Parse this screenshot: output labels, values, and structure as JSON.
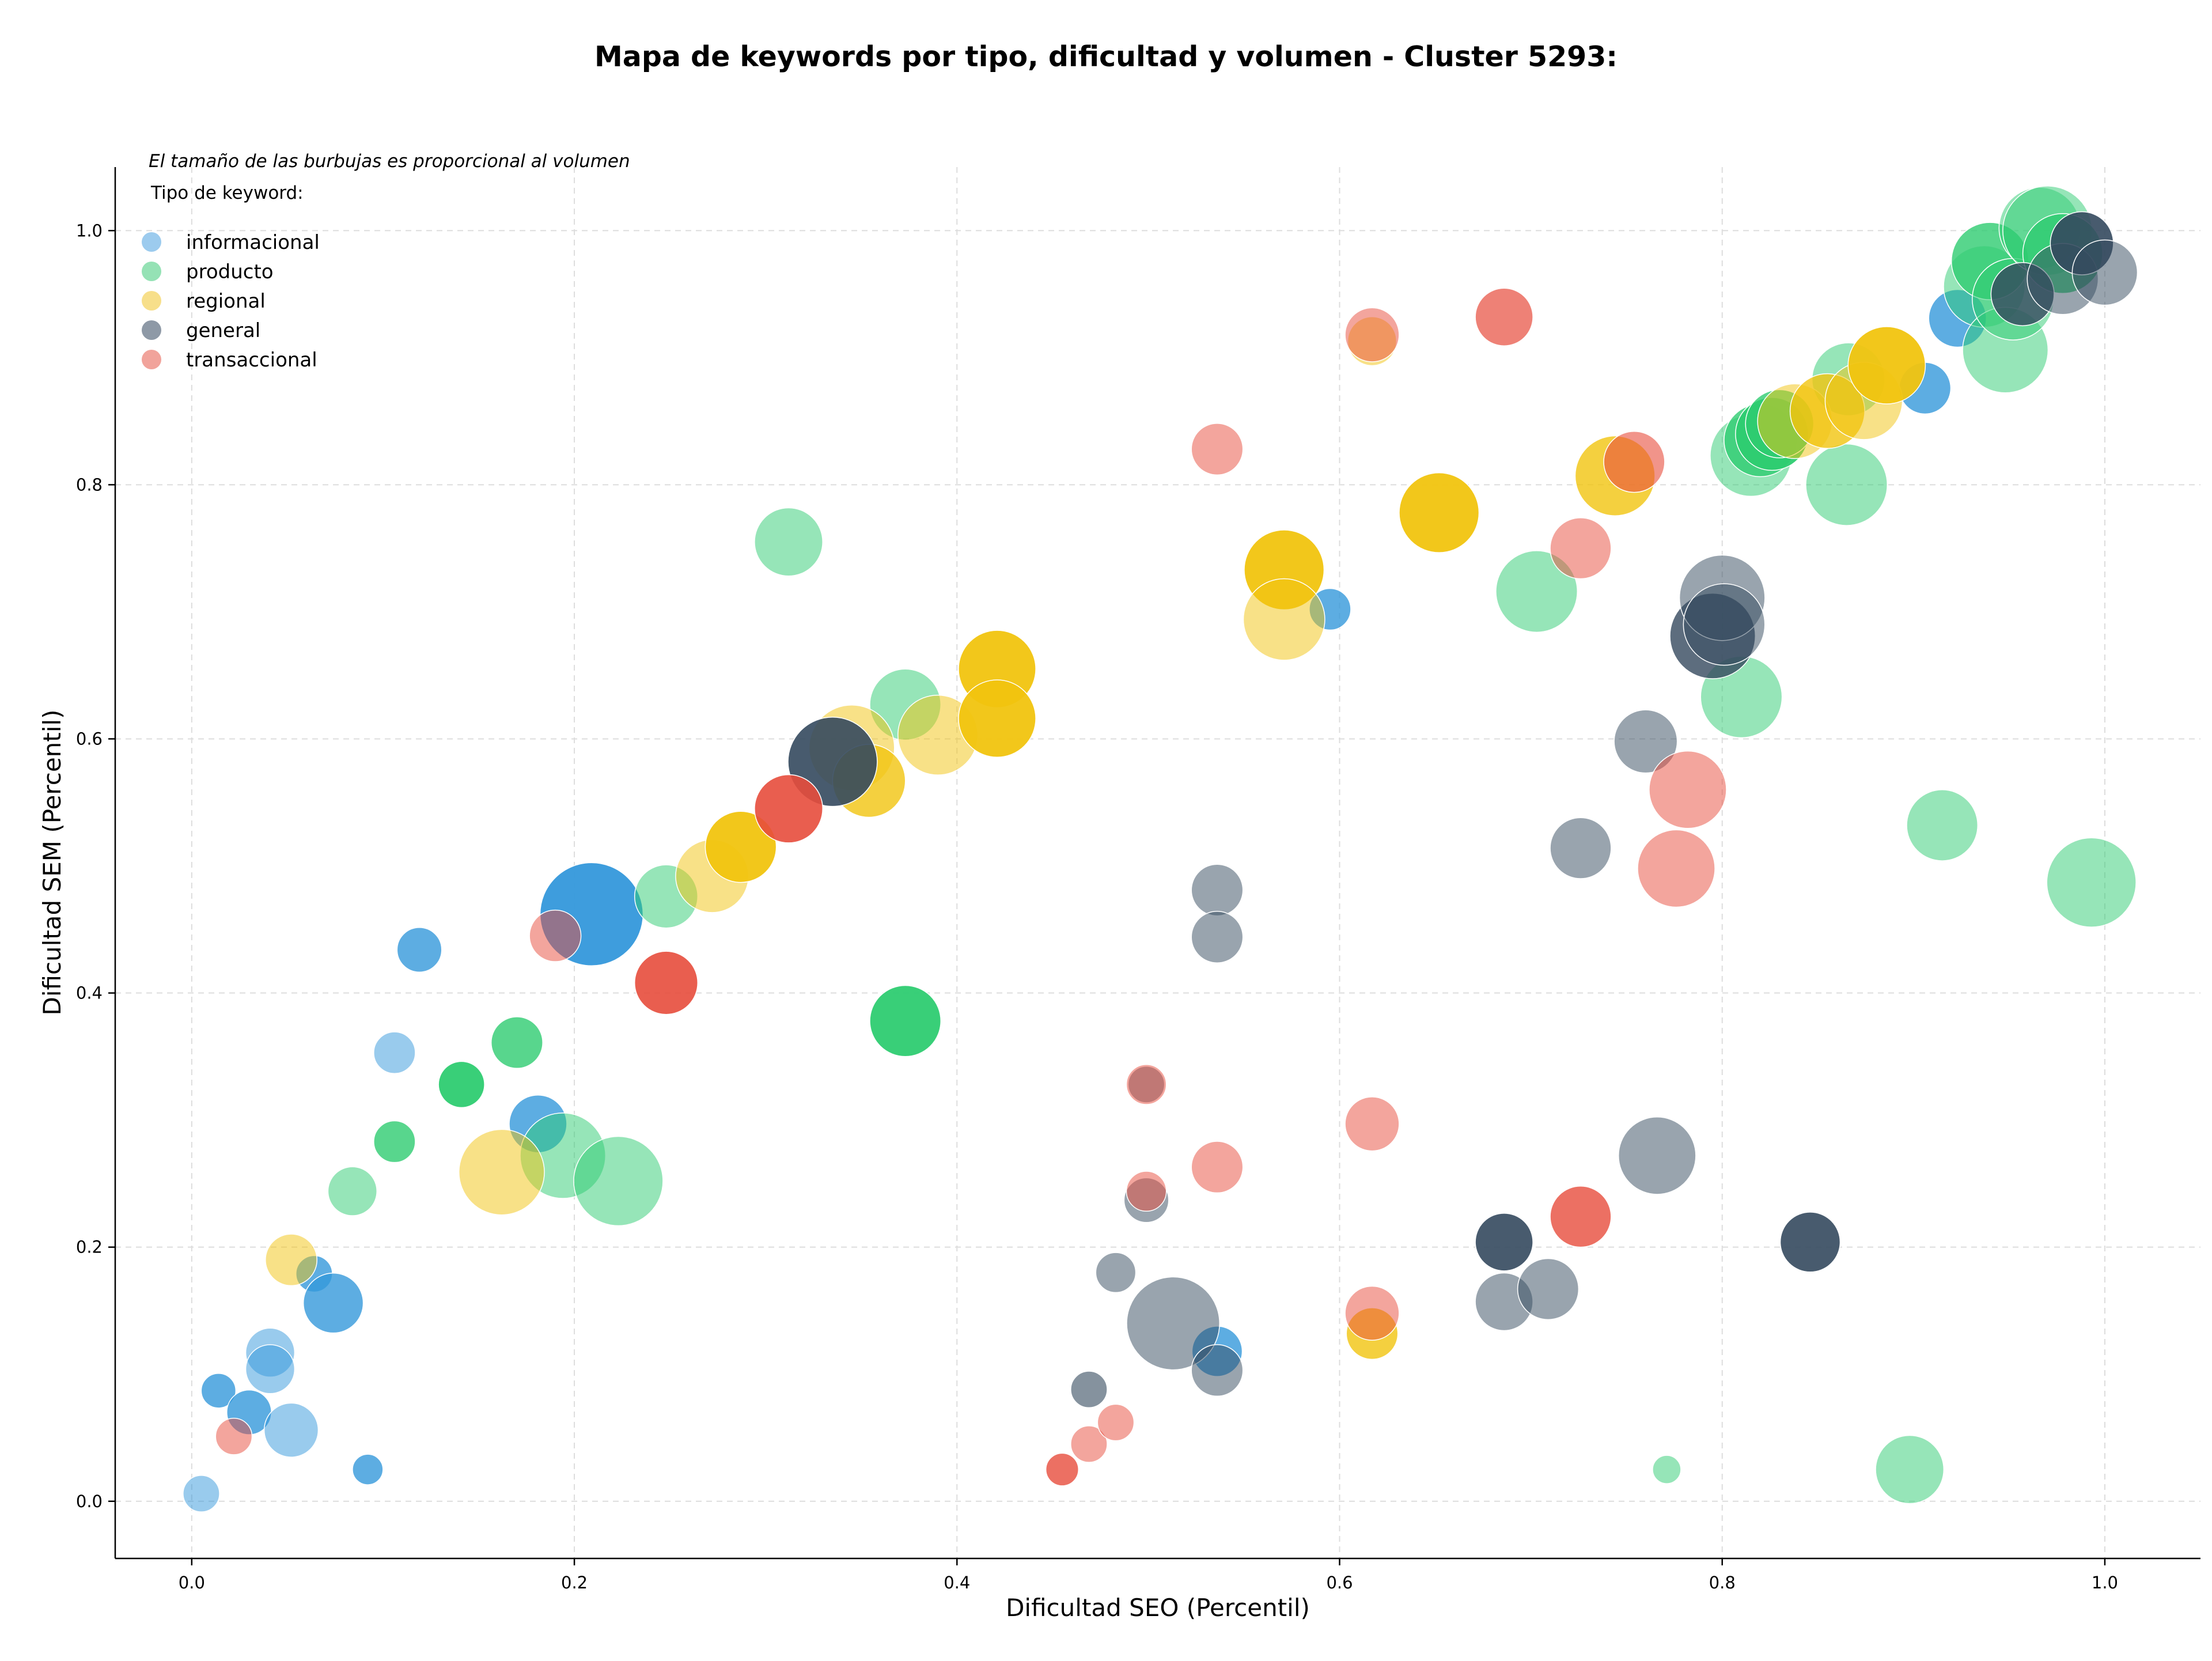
{
  "chart_data": {
    "type": "scatter",
    "title": "Mapa de keywords por tipo, dificultad y volumen - Cluster 5293:",
    "xlabel": "Dificultad SEO (Percentil)",
    "ylabel": "Dificultad SEM (Percentil)",
    "note": "El tamaño de las burbujas es proporcional al volumen",
    "legend_title": "Tipo de keyword:",
    "legend_position": "top-left",
    "grid": true,
    "xlim": [
      -0.04,
      1.05
    ],
    "ylim": [
      -0.045,
      1.05
    ],
    "xticks": [
      0.0,
      0.2,
      0.4,
      0.6,
      0.8,
      1.0
    ],
    "yticks": [
      0.0,
      0.2,
      0.4,
      0.6,
      0.8,
      1.0
    ],
    "xtick_labels": [
      "0.0",
      "0.2",
      "0.4",
      "0.6",
      "0.8",
      "1.0"
    ],
    "ytick_labels": [
      "0.0",
      "0.2",
      "0.4",
      "0.6",
      "0.8",
      "1.0"
    ],
    "series": [
      {
        "name": "informacional",
        "color": "#3498db",
        "legend_color": "#9ccbee",
        "points": [
          [
            0.005,
            0.006,
            10
          ],
          [
            0.014,
            0.087,
            9
          ],
          [
            0.03,
            0.07,
            15
          ],
          [
            0.041,
            0.117,
            18
          ],
          [
            0.041,
            0.104,
            18
          ],
          [
            0.052,
            0.056,
            22
          ],
          [
            0.064,
            0.179,
            10
          ],
          [
            0.074,
            0.156,
            27
          ],
          [
            0.092,
            0.025,
            7
          ],
          [
            0.106,
            0.353,
            13
          ],
          [
            0.119,
            0.434,
            15
          ],
          [
            0.181,
            0.297,
            25
          ],
          [
            0.209,
            0.462,
            80
          ],
          [
            0.595,
            0.702,
            13
          ],
          [
            0.536,
            0.118,
            19
          ],
          [
            0.906,
            0.876,
            20
          ],
          [
            0.923,
            0.931,
            25
          ]
        ],
        "alphas": [
          0.5,
          0.8,
          0.8,
          0.5,
          0.5,
          0.5,
          0.8,
          0.8,
          0.8,
          0.5,
          0.8,
          0.8,
          0.95,
          0.8,
          0.8,
          0.8,
          0.8
        ]
      },
      {
        "name": "producto",
        "color": "#2ecc71",
        "legend_color": "#95e2b5",
        "points": [
          [
            0.084,
            0.244,
            18
          ],
          [
            0.106,
            0.283,
            13
          ],
          [
            0.141,
            0.328,
            16
          ],
          [
            0.17,
            0.361,
            20
          ],
          [
            0.194,
            0.272,
            55
          ],
          [
            0.223,
            0.252,
            60
          ],
          [
            0.248,
            0.476,
            30
          ],
          [
            0.312,
            0.755,
            35
          ],
          [
            0.373,
            0.627,
            38
          ],
          [
            0.373,
            0.378,
            38
          ],
          [
            0.703,
            0.716,
            50
          ],
          [
            0.771,
            0.025,
            6
          ],
          [
            0.81,
            0.633,
            50
          ],
          [
            0.815,
            0.823,
            50
          ],
          [
            0.82,
            0.835,
            40
          ],
          [
            0.826,
            0.84,
            40
          ],
          [
            0.83,
            0.848,
            35
          ],
          [
            0.865,
            0.8,
            50
          ],
          [
            0.866,
            0.883,
            40
          ],
          [
            0.898,
            0.025,
            35
          ],
          [
            0.915,
            0.532,
            38
          ],
          [
            0.937,
            0.956,
            50
          ],
          [
            0.94,
            0.976,
            45
          ],
          [
            0.948,
            0.906,
            55
          ],
          [
            0.952,
            0.946,
            50
          ],
          [
            0.966,
            1.002,
            50
          ],
          [
            0.97,
            1.0,
            60
          ],
          [
            0.978,
            0.982,
            48
          ],
          [
            0.993,
            0.487,
            60
          ]
        ],
        "alphas": [
          0.5,
          0.8,
          0.95,
          0.8,
          0.5,
          0.5,
          0.5,
          0.5,
          0.5,
          0.95,
          0.5,
          0.5,
          0.5,
          0.5,
          0.8,
          0.95,
          0.8,
          0.5,
          0.5,
          0.5,
          0.5,
          0.5,
          0.8,
          0.5,
          0.5,
          0.5,
          0.5,
          0.8,
          0.5
        ]
      },
      {
        "name": "regional",
        "color": "#f1c40f",
        "legend_color": "#f7df8a",
        "points": [
          [
            0.052,
            0.19,
            20
          ],
          [
            0.162,
            0.259,
            55
          ],
          [
            0.272,
            0.492,
            40
          ],
          [
            0.287,
            0.515,
            38
          ],
          [
            0.345,
            0.593,
            55
          ],
          [
            0.354,
            0.567,
            40
          ],
          [
            0.39,
            0.603,
            48
          ],
          [
            0.421,
            0.655,
            45
          ],
          [
            0.421,
            0.616,
            45
          ],
          [
            0.571,
            0.733,
            48
          ],
          [
            0.571,
            0.694,
            50
          ],
          [
            0.652,
            0.778,
            48
          ],
          [
            0.617,
            0.913,
            18
          ],
          [
            0.617,
            0.132,
            20
          ],
          [
            0.744,
            0.807,
            48
          ],
          [
            0.838,
            0.85,
            42
          ],
          [
            0.855,
            0.858,
            42
          ],
          [
            0.874,
            0.866,
            45
          ],
          [
            0.886,
            0.894,
            45
          ]
        ],
        "alphas": [
          0.5,
          0.5,
          0.5,
          0.95,
          0.5,
          0.8,
          0.5,
          0.95,
          0.95,
          0.95,
          0.5,
          0.95,
          0.5,
          0.8,
          0.8,
          0.5,
          0.8,
          0.5,
          0.95
        ]
      },
      {
        "name": "general",
        "color": "#34495e",
        "legend_color": "#8e99a6",
        "points": [
          [
            0.335,
            0.582,
            60
          ],
          [
            0.469,
            0.088,
            10
          ],
          [
            0.483,
            0.18,
            12
          ],
          [
            0.499,
            0.237,
            15
          ],
          [
            0.499,
            0.328,
            10
          ],
          [
            0.513,
            0.14,
            65
          ],
          [
            0.536,
            0.481,
            20
          ],
          [
            0.536,
            0.444,
            20
          ],
          [
            0.536,
            0.103,
            20
          ],
          [
            0.686,
            0.157,
            25
          ],
          [
            0.686,
            0.204,
            25
          ],
          [
            0.709,
            0.167,
            28
          ],
          [
            0.726,
            0.514,
            28
          ],
          [
            0.76,
            0.598,
            30
          ],
          [
            0.766,
            0.272,
            45
          ],
          [
            0.795,
            0.681,
            55
          ],
          [
            0.8,
            0.711,
            55
          ],
          [
            0.801,
            0.69,
            50
          ],
          [
            0.846,
            0.204,
            27
          ],
          [
            0.957,
            0.95,
            30
          ],
          [
            0.978,
            0.962,
            38
          ],
          [
            0.988,
            0.99,
            30
          ],
          [
            1.0,
            0.967,
            32
          ]
        ],
        "alphas": [
          0.9,
          0.6,
          0.5,
          0.5,
          0.5,
          0.5,
          0.5,
          0.5,
          0.5,
          0.5,
          0.9,
          0.5,
          0.5,
          0.5,
          0.5,
          0.8,
          0.5,
          0.5,
          0.9,
          0.8,
          0.5,
          0.9,
          0.5
        ]
      },
      {
        "name": "transaccional",
        "color": "#e74c3c",
        "legend_color": "#f1a39b",
        "points": [
          [
            0.022,
            0.051,
            10
          ],
          [
            0.19,
            0.445,
            20
          ],
          [
            0.248,
            0.408,
            30
          ],
          [
            0.312,
            0.545,
            35
          ],
          [
            0.455,
            0.025,
            8
          ],
          [
            0.469,
            0.045,
            10
          ],
          [
            0.483,
            0.062,
            10
          ],
          [
            0.499,
            0.244,
            12
          ],
          [
            0.499,
            0.328,
            12
          ],
          [
            0.536,
            0.828,
            20
          ],
          [
            0.536,
            0.263,
            20
          ],
          [
            0.617,
            0.297,
            22
          ],
          [
            0.617,
            0.148,
            22
          ],
          [
            0.617,
            0.918,
            22
          ],
          [
            0.686,
            0.932,
            25
          ],
          [
            0.726,
            0.75,
            28
          ],
          [
            0.726,
            0.224,
            28
          ],
          [
            0.754,
            0.818,
            28
          ],
          [
            0.776,
            0.498,
            45
          ],
          [
            0.782,
            0.56,
            45
          ]
        ],
        "alphas": [
          0.5,
          0.5,
          0.9,
          0.9,
          0.8,
          0.5,
          0.5,
          0.5,
          0.5,
          0.5,
          0.5,
          0.5,
          0.5,
          0.5,
          0.7,
          0.5,
          0.8,
          0.6,
          0.5,
          0.5
        ]
      }
    ]
  }
}
